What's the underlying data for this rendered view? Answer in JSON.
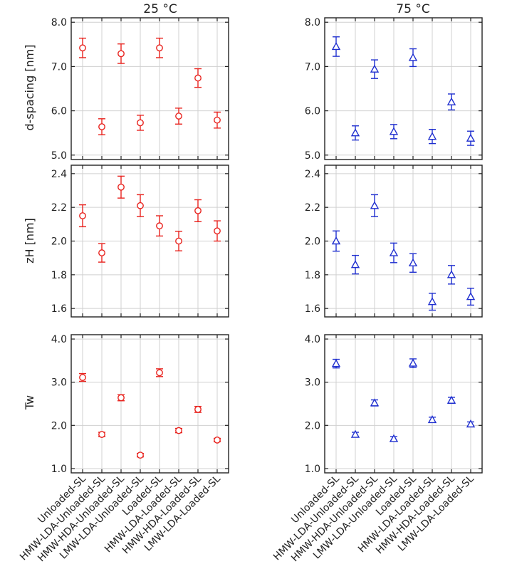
{
  "columns": [
    {
      "title": "25 °C",
      "color": "#e8231e",
      "marker": "circle"
    },
    {
      "title": "75 °C",
      "color": "#1f2fcf",
      "marker": "triangle"
    }
  ],
  "categories": [
    "Unloaded-SL",
    "HMW-LDA-Unloaded-SL",
    "HMW-HDA-Unloaded-SL",
    "LMW-LDA-Unloaded-SL",
    "Loaded-SL",
    "HMW-LDA-Loaded-SL",
    "HMW-HDA-Loaded-SL",
    "LMW-LDA-Loaded-SL"
  ],
  "rows": [
    {
      "ylabel": "d-spacing [nm]",
      "ylim": [
        4.9,
        8.1
      ],
      "yticks": [
        "5.0",
        "6.0",
        "7.0",
        "8.0"
      ]
    },
    {
      "ylabel": "zH [nm]",
      "ylim": [
        1.55,
        2.45
      ],
      "yticks": [
        "1.6",
        "1.8",
        "2.0",
        "2.2",
        "2.4"
      ]
    },
    {
      "ylabel": "Tw",
      "ylim": [
        0.9,
        4.1
      ],
      "yticks": [
        "1.0",
        "2.0",
        "3.0",
        "4.0"
      ]
    }
  ],
  "chart_data": [
    {
      "type": "scatter",
      "title": "25 °C",
      "xlabel": "",
      "ylabel": "d-spacing [nm]",
      "ylim": [
        4.9,
        8.1
      ],
      "grid": true,
      "categories": [
        "Unloaded-SL",
        "HMW-LDA-Unloaded-SL",
        "HMW-HDA-Unloaded-SL",
        "LMW-LDA-Unloaded-SL",
        "Loaded-SL",
        "HMW-LDA-Loaded-SL",
        "HMW-HDA-Loaded-SL",
        "LMW-LDA-Loaded-SL"
      ],
      "values": [
        7.42,
        5.64,
        7.29,
        5.73,
        7.42,
        5.88,
        6.74,
        5.79
      ],
      "errors": [
        0.22,
        0.18,
        0.22,
        0.17,
        0.22,
        0.18,
        0.21,
        0.18
      ]
    },
    {
      "type": "scatter",
      "title": "75 °C",
      "xlabel": "",
      "ylabel": "",
      "ylim": [
        4.9,
        8.1
      ],
      "grid": true,
      "categories": [
        "Unloaded-SL",
        "HMW-LDA-Unloaded-SL",
        "HMW-HDA-Unloaded-SL",
        "LMW-LDA-Unloaded-SL",
        "Loaded-SL",
        "HMW-LDA-Loaded-SL",
        "HMW-HDA-Loaded-SL",
        "LMW-LDA-Loaded-SL"
      ],
      "values": [
        7.45,
        5.5,
        6.94,
        5.53,
        7.2,
        5.42,
        6.2,
        5.38
      ],
      "errors": [
        0.22,
        0.16,
        0.21,
        0.16,
        0.2,
        0.16,
        0.18,
        0.16
      ]
    },
    {
      "type": "scatter",
      "title": "",
      "xlabel": "",
      "ylabel": "zH [nm]",
      "ylim": [
        1.55,
        2.45
      ],
      "grid": true,
      "categories": [
        "Unloaded-SL",
        "HMW-LDA-Unloaded-SL",
        "HMW-HDA-Unloaded-SL",
        "LMW-LDA-Unloaded-SL",
        "Loaded-SL",
        "HMW-LDA-Loaded-SL",
        "HMW-HDA-Loaded-SL",
        "LMW-LDA-Loaded-SL"
      ],
      "values": [
        2.15,
        1.93,
        2.32,
        2.21,
        2.09,
        2.0,
        2.18,
        2.06
      ],
      "errors": [
        0.065,
        0.055,
        0.065,
        0.065,
        0.06,
        0.058,
        0.065,
        0.06
      ]
    },
    {
      "type": "scatter",
      "title": "",
      "xlabel": "",
      "ylabel": "",
      "ylim": [
        1.55,
        2.45
      ],
      "grid": true,
      "categories": [
        "Unloaded-SL",
        "HMW-LDA-Unloaded-SL",
        "HMW-HDA-Unloaded-SL",
        "LMW-LDA-Unloaded-SL",
        "Loaded-SL",
        "HMW-LDA-Loaded-SL",
        "HMW-HDA-Loaded-SL",
        "LMW-LDA-Loaded-SL"
      ],
      "values": [
        2.0,
        1.86,
        2.21,
        1.93,
        1.87,
        1.64,
        1.8,
        1.67
      ],
      "errors": [
        0.06,
        0.055,
        0.065,
        0.058,
        0.055,
        0.05,
        0.055,
        0.05
      ]
    },
    {
      "type": "scatter",
      "title": "",
      "xlabel": "",
      "ylabel": "Tw",
      "ylim": [
        0.9,
        4.1
      ],
      "grid": true,
      "categories": [
        "Unloaded-SL",
        "HMW-LDA-Unloaded-SL",
        "HMW-HDA-Unloaded-SL",
        "LMW-LDA-Unloaded-SL",
        "Loaded-SL",
        "HMW-LDA-Loaded-SL",
        "HMW-HDA-Loaded-SL",
        "LMW-LDA-Loaded-SL"
      ],
      "values": [
        3.11,
        1.79,
        2.64,
        1.31,
        3.22,
        1.88,
        2.37,
        1.66
      ],
      "errors": [
        0.09,
        0.05,
        0.07,
        0.04,
        0.09,
        0.05,
        0.07,
        0.04
      ]
    },
    {
      "type": "scatter",
      "title": "",
      "xlabel": "",
      "ylabel": "",
      "ylim": [
        0.9,
        4.1
      ],
      "grid": true,
      "categories": [
        "Unloaded-SL",
        "HMW-LDA-Unloaded-SL",
        "HMW-HDA-Unloaded-SL",
        "LMW-LDA-Unloaded-SL",
        "Loaded-SL",
        "HMW-LDA-Loaded-SL",
        "HMW-HDA-Loaded-SL",
        "LMW-LDA-Loaded-SL"
      ],
      "values": [
        3.43,
        1.79,
        2.52,
        1.69,
        3.44,
        2.13,
        2.58,
        2.03
      ],
      "errors": [
        0.1,
        0.05,
        0.07,
        0.05,
        0.1,
        0.06,
        0.07,
        0.05
      ]
    }
  ]
}
